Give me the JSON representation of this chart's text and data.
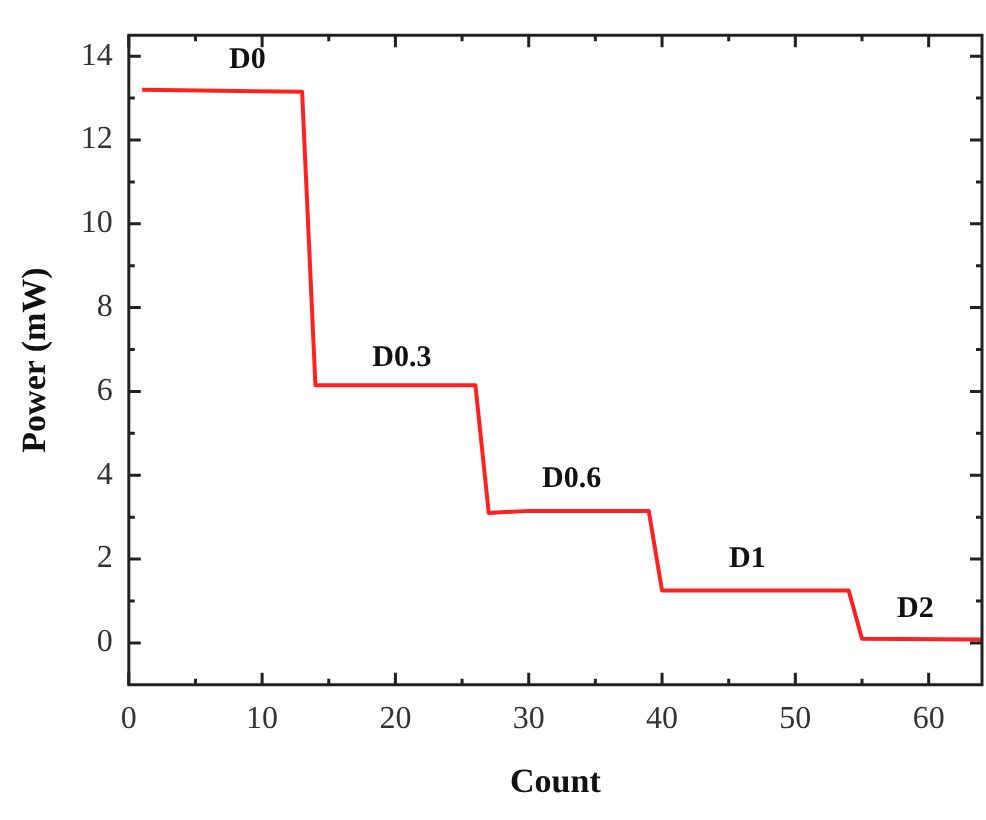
{
  "chart_data": {
    "type": "line",
    "xlabel": "Count",
    "ylabel": "Power (mW)",
    "x": [
      1,
      13,
      14,
      26,
      27,
      30,
      39,
      40,
      54,
      55,
      64
    ],
    "series": [
      {
        "color": "#ff2020",
        "values": [
          13.2,
          13.15,
          6.15,
          6.15,
          3.1,
          3.15,
          3.15,
          1.25,
          1.25,
          0.1,
          0.08
        ]
      }
    ],
    "xlim": [
      0,
      64
    ],
    "xticks": [
      0,
      10,
      20,
      30,
      40,
      50,
      60
    ],
    "ylim": [
      -1,
      14.5
    ],
    "yticks": [
      0,
      2,
      4,
      6,
      8,
      10,
      12,
      14
    ],
    "grid": false,
    "legend": false,
    "marker": "none",
    "line_style": "solid",
    "annotations": [
      "D0",
      "D0.3",
      "D0.6",
      "D1",
      "D2"
    ]
  }
}
